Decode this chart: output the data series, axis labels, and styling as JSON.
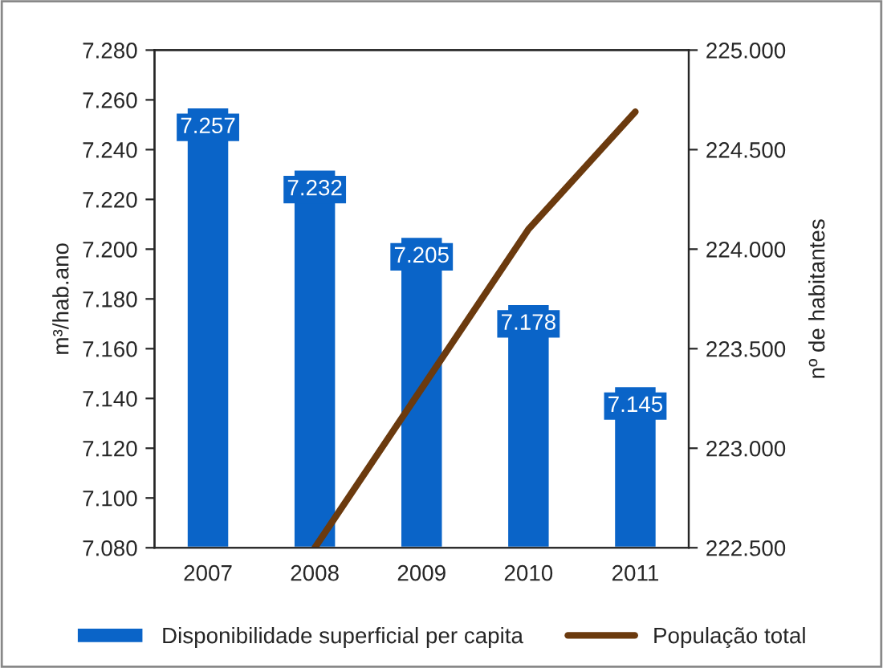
{
  "chart_data": {
    "type": "bar",
    "categories": [
      "2007",
      "2008",
      "2009",
      "2010",
      "2011"
    ],
    "ylabel": "m³/hab.ano",
    "y2label": "nº de habitantes",
    "ylim": [
      7.08,
      7.28
    ],
    "yticks": [
      {
        "value": 7.08,
        "label": "7.080"
      },
      {
        "value": 7.1,
        "label": "7.100"
      },
      {
        "value": 7.12,
        "label": "7.120"
      },
      {
        "value": 7.14,
        "label": "7.140"
      },
      {
        "value": 7.16,
        "label": "7.160"
      },
      {
        "value": 7.18,
        "label": "7.180"
      },
      {
        "value": 7.2,
        "label": "7.200"
      },
      {
        "value": 7.22,
        "label": "7.220"
      },
      {
        "value": 7.24,
        "label": "7.240"
      },
      {
        "value": 7.26,
        "label": "7.260"
      },
      {
        "value": 7.28,
        "label": "7.280"
      }
    ],
    "y2lim": [
      222.5,
      225
    ],
    "y2ticks": [
      {
        "value": 222.5,
        "label": "222.500"
      },
      {
        "value": 223,
        "label": "223.000"
      },
      {
        "value": 223.5,
        "label": "223.500"
      },
      {
        "value": 224,
        "label": "224.000"
      },
      {
        "value": 224.5,
        "label": "224.500"
      },
      {
        "value": 225,
        "label": "225.000"
      }
    ],
    "series": [
      {
        "name": "Disponibilidade superficial per capita",
        "color": "#0a64c8",
        "values": [
          7.257,
          7.232,
          7.205,
          7.178,
          7.145
        ],
        "value_labels": [
          "7.257",
          "7.232",
          "7.205",
          "7.178",
          "7.145"
        ]
      },
      {
        "name": "População total",
        "type": "line",
        "axis": "y2",
        "color": "#6b3a0e",
        "values": [
          null,
          222.5,
          223.3,
          224.1,
          224.69
        ]
      }
    ],
    "legend": "bottom",
    "grid": false
  }
}
